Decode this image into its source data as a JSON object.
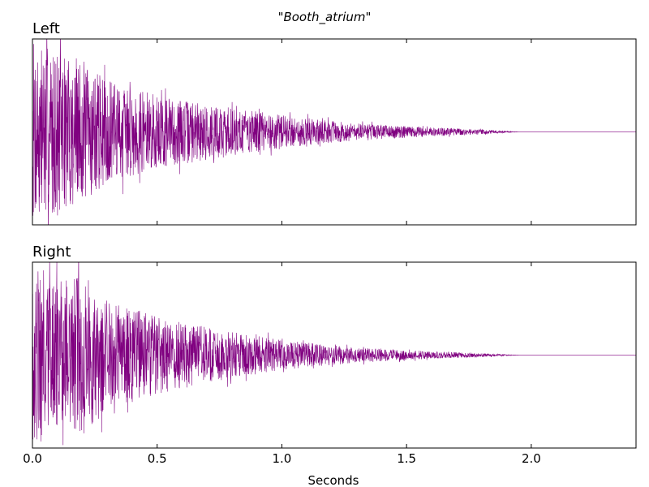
{
  "chart_data": {
    "type": "line",
    "title": "\"Booth_atrium\"",
    "xlabel": "Seconds",
    "ylabel": "",
    "xlim": [
      0.0,
      2.42
    ],
    "x_ticks": [
      "0.0",
      "0.5",
      "1.0",
      "1.5",
      "2.0"
    ],
    "x_tick_values": [
      0.0,
      0.5,
      1.0,
      1.5,
      2.0
    ],
    "grid": false,
    "line_color": "#800080",
    "panels": [
      {
        "title": "Left",
        "seed": 7,
        "envelope": {
          "x": [
            0.0,
            0.02,
            0.05,
            0.1,
            0.2,
            0.3,
            0.5,
            0.7,
            1.0,
            1.3,
            1.6,
            1.8,
            1.95,
            2.42
          ],
          "amplitude": [
            1.0,
            1.0,
            0.95,
            0.85,
            0.78,
            0.55,
            0.4,
            0.3,
            0.18,
            0.09,
            0.05,
            0.025,
            0.0,
            0.0
          ]
        }
      },
      {
        "title": "Right",
        "seed": 19,
        "envelope": {
          "x": [
            0.0,
            0.02,
            0.05,
            0.1,
            0.2,
            0.3,
            0.5,
            0.7,
            1.0,
            1.3,
            1.6,
            1.8,
            1.95,
            2.42
          ],
          "amplitude": [
            1.0,
            1.0,
            0.9,
            0.8,
            0.85,
            0.6,
            0.42,
            0.3,
            0.16,
            0.08,
            0.04,
            0.02,
            0.0,
            0.0
          ]
        }
      }
    ]
  }
}
